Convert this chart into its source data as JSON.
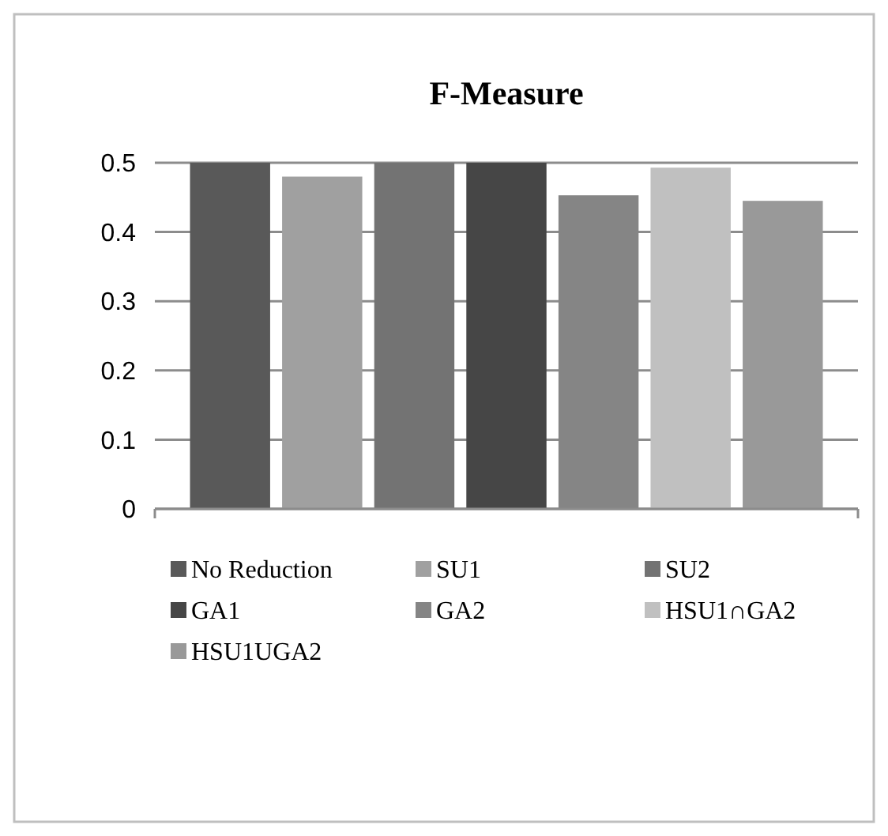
{
  "chart_data": {
    "type": "bar",
    "title": "F-Measure",
    "categories": [
      null
    ],
    "series": [
      {
        "name": "No Reduction",
        "color": "#595959",
        "values": [
          0.5
        ]
      },
      {
        "name": "SU1",
        "color": "#a0a0a0",
        "values": [
          0.48
        ]
      },
      {
        "name": "SU2",
        "color": "#737373",
        "values": [
          0.5
        ]
      },
      {
        "name": "GA1",
        "color": "#464646",
        "values": [
          0.5
        ]
      },
      {
        "name": "GA2",
        "color": "#858585",
        "values": [
          0.453
        ]
      },
      {
        "name": "HSU1∩GA2",
        "color": "#c0c0c0",
        "values": [
          0.493
        ]
      },
      {
        "name": "HSU1UGA2",
        "color": "#999999",
        "values": [
          0.445
        ]
      }
    ],
    "ylim": [
      0,
      0.5
    ],
    "yticks": [
      0,
      0.1,
      0.2,
      0.3,
      0.4,
      0.5
    ],
    "grid": "y",
    "legend": "bottom"
  }
}
